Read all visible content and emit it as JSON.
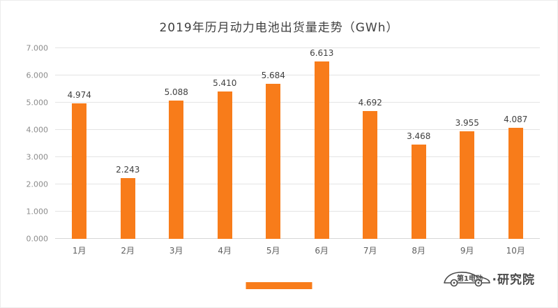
{
  "chart_data": {
    "type": "bar",
    "title": "2019年历月动力电池出货量走势（GWh）",
    "categories": [
      "1月",
      "2月",
      "3月",
      "4月",
      "5月",
      "6月",
      "7月",
      "8月",
      "9月",
      "10月"
    ],
    "values": [
      4.974,
      2.243,
      5.088,
      5.41,
      5.684,
      6.613,
      4.692,
      3.468,
      3.955,
      4.087
    ],
    "xlabel": "",
    "ylabel": "",
    "ylim": [
      0,
      7
    ],
    "ytick_labels": [
      "0.000",
      "1.000",
      "2.000",
      "3.000",
      "4.000",
      "5.000",
      "6.000",
      "7.000"
    ],
    "grid": true,
    "legend": "none",
    "bar_color": "#f87c1a",
    "value_label_decimals": 3
  },
  "footer": {
    "logo_car_text": "第1电动",
    "logo_suffix": "·研究院",
    "accent_color": "#f87c1a"
  }
}
